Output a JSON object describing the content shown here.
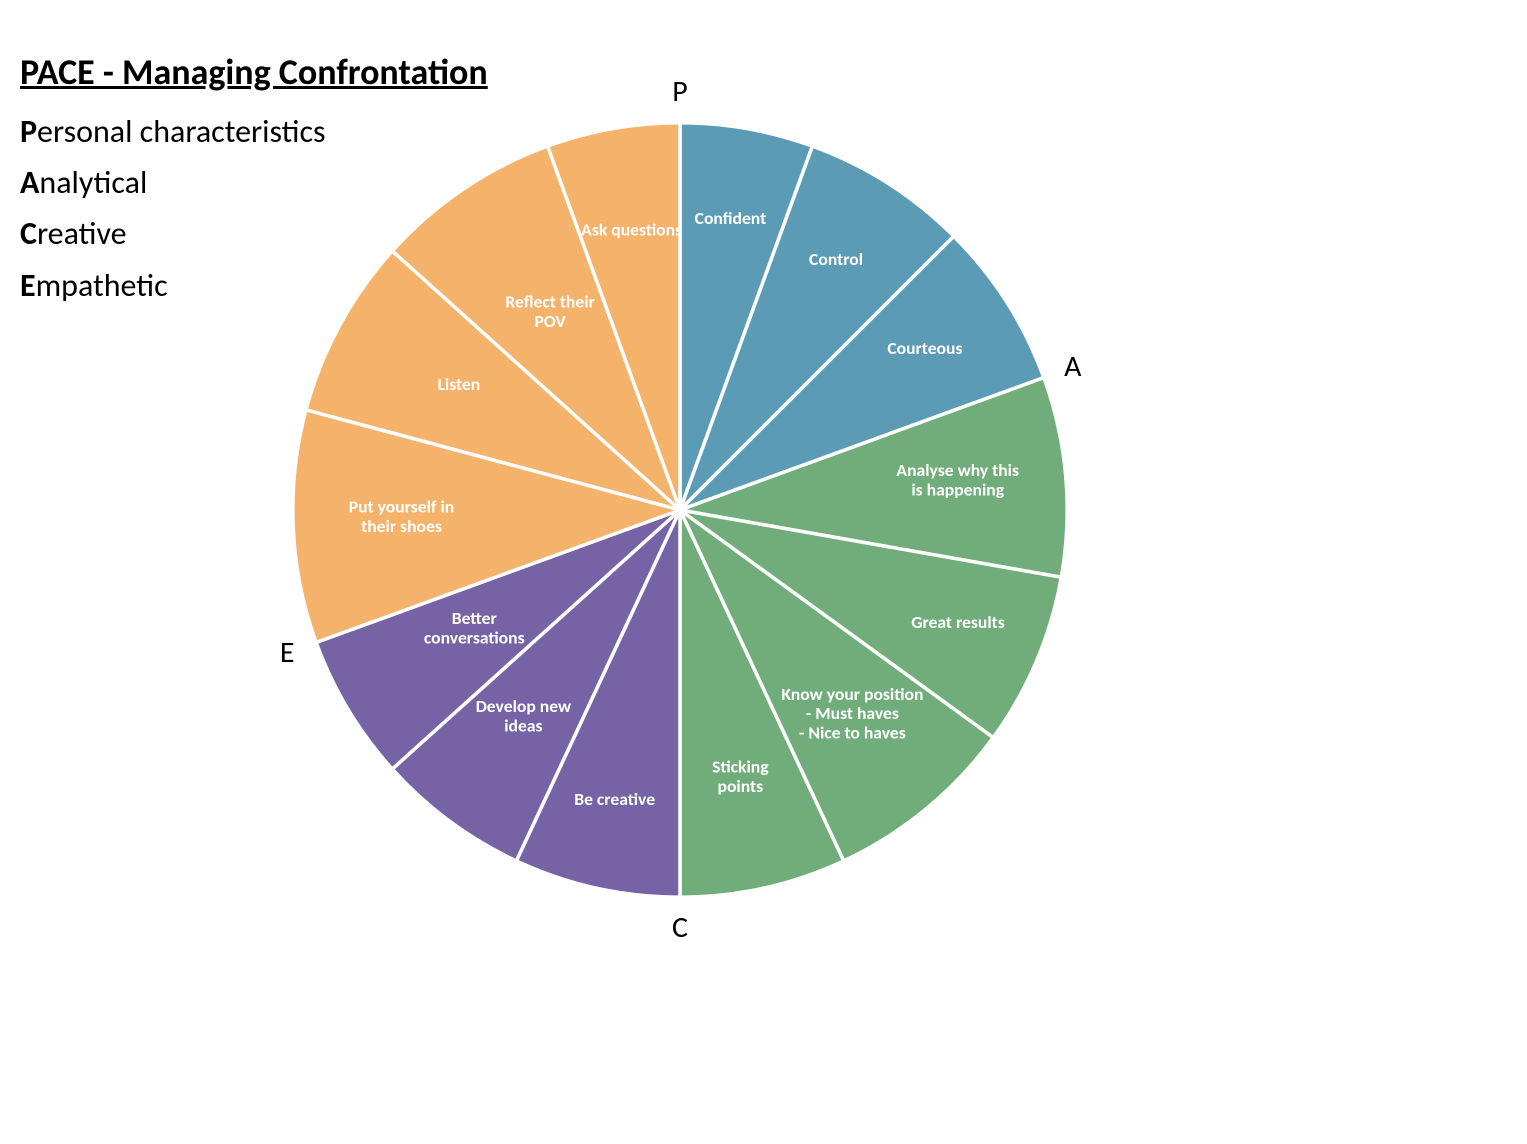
{
  "title": {
    "main": "PACE - ",
    "sub": "Managing Confrontation"
  },
  "acrostic": [
    {
      "lead": "P",
      "rest": "ersonal characteristics"
    },
    {
      "lead": "A",
      "rest": "nalytical"
    },
    {
      "lead": "C",
      "rest": "reative"
    },
    {
      "lead": "E",
      "rest": "mpathetic"
    }
  ],
  "chart": {
    "type": "pie",
    "radius": 440,
    "stroke_color": "#ffffff",
    "stroke_width": 4,
    "background_color": "#ffffff",
    "label_fontsize": 20,
    "label_fontweight": "700",
    "label_color": "#ffffff",
    "quadrant_letters": [
      {
        "letter": "P",
        "angle_deg": 0
      },
      {
        "letter": "A",
        "angle_deg": 70
      },
      {
        "letter": "C",
        "angle_deg": 180
      },
      {
        "letter": "E",
        "angle_deg": 250
      }
    ],
    "palette": {
      "P": "#5b9bb5",
      "A": "#70ad7a",
      "C": "#7563a6",
      "E": "#f4b26b"
    },
    "slices": [
      {
        "group": "P",
        "label_lines": [
          "Confident"
        ],
        "start": 0,
        "end": 20,
        "color": "#5b9bb5",
        "label_r": 0.75
      },
      {
        "group": "P",
        "label_lines": [
          "Control"
        ],
        "start": 20,
        "end": 45,
        "color": "#5b9bb5",
        "label_r": 0.75
      },
      {
        "group": "P",
        "label_lines": [
          "Courteous"
        ],
        "start": 45,
        "end": 70,
        "color": "#5b9bb5",
        "label_r": 0.75
      },
      {
        "group": "A",
        "label_lines": [
          "Analyse why this",
          "is happening"
        ],
        "start": 70,
        "end": 100,
        "color": "#70ad7a",
        "label_r": 0.72
      },
      {
        "group": "A",
        "label_lines": [
          "Great results"
        ],
        "start": 100,
        "end": 126,
        "color": "#70ad7a",
        "label_r": 0.78
      },
      {
        "group": "A",
        "label_lines": [
          "Know your position",
          "- Must haves",
          "- Nice to haves"
        ],
        "start": 126,
        "end": 155,
        "color": "#70ad7a",
        "label_r": 0.7
      },
      {
        "group": "A",
        "label_lines": [
          "Sticking",
          "points"
        ],
        "start": 155,
        "end": 180,
        "color": "#70ad7a",
        "label_r": 0.72
      },
      {
        "group": "C",
        "label_lines": [
          "Be creative"
        ],
        "start": 180,
        "end": 205,
        "color": "#7563a6",
        "label_r": 0.78
      },
      {
        "group": "C",
        "label_lines": [
          "Develop new",
          "ideas"
        ],
        "start": 205,
        "end": 228,
        "color": "#7563a6",
        "label_r": 0.68
      },
      {
        "group": "C",
        "label_lines": [
          "Better",
          "conversations"
        ],
        "start": 228,
        "end": 250,
        "color": "#7563a6",
        "label_r": 0.62
      },
      {
        "group": "E",
        "label_lines": [
          "Put yourself in",
          "their shoes"
        ],
        "start": 250,
        "end": 285,
        "color": "#f4b26b",
        "label_r": 0.72
      },
      {
        "group": "E",
        "label_lines": [
          "Listen"
        ],
        "start": 285,
        "end": 312,
        "color": "#f4b26b",
        "label_r": 0.65
      },
      {
        "group": "E",
        "label_lines": [
          "Reflect their",
          "POV"
        ],
        "start": 312,
        "end": 340,
        "color": "#f4b26b",
        "label_r": 0.6
      },
      {
        "group": "E",
        "label_lines": [
          "Ask questions"
        ],
        "start": 340,
        "end": 360,
        "color": "#f4b26b",
        "label_r": 0.72
      }
    ]
  }
}
